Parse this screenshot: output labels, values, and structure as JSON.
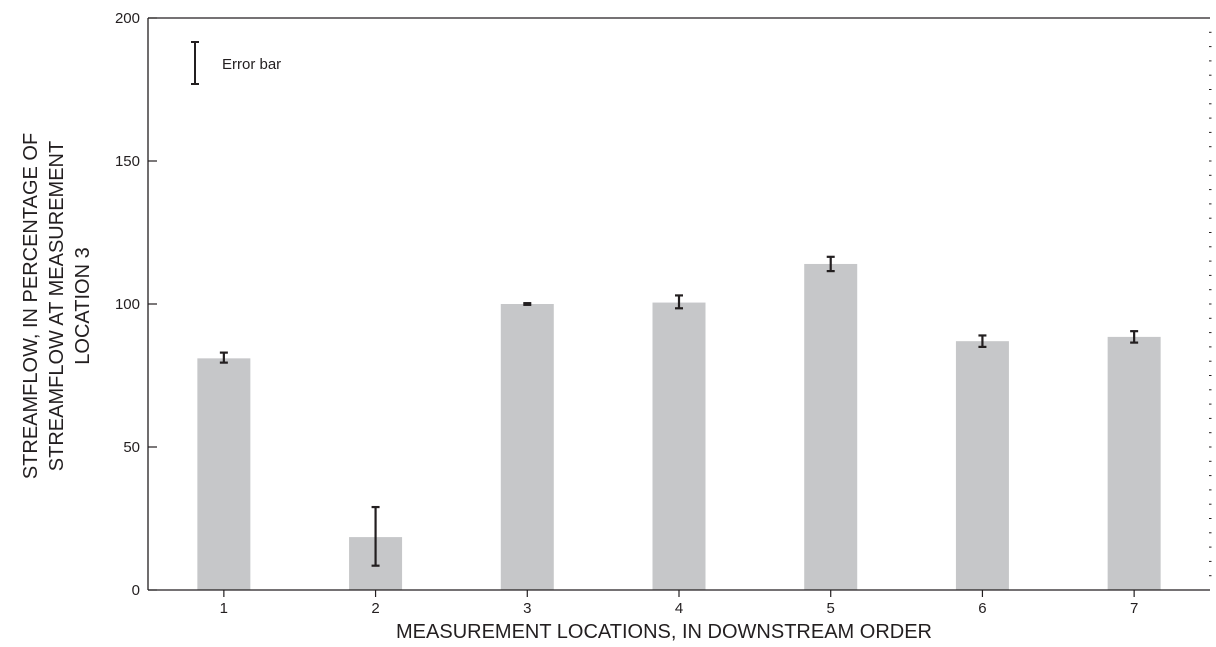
{
  "chart_data": {
    "type": "bar",
    "categories": [
      "1",
      "2",
      "3",
      "4",
      "5",
      "6",
      "7"
    ],
    "values": [
      81,
      18.5,
      100,
      100.5,
      114,
      87,
      88.5
    ],
    "error_low": [
      79.5,
      8.5,
      99.7,
      98.5,
      111.5,
      85,
      86.5
    ],
    "error_high": [
      83,
      29,
      100.3,
      103,
      116.5,
      89,
      90.5
    ],
    "xlabel": "MEASUREMENT LOCATIONS, IN DOWNSTREAM ORDER",
    "ylabel_lines": [
      "STREAMFLOW, IN PERCENTAGE OF",
      "STREAMFLOW AT MEASUREMENT",
      "LOCATION 3"
    ],
    "yticks": [
      0,
      50,
      100,
      150,
      200
    ],
    "ylim": [
      0,
      200
    ],
    "legend": {
      "label": "Error bar",
      "placement": "top-left"
    },
    "grid": false,
    "colors": {
      "bar": "#c6c7c9",
      "ink": "#231f20"
    }
  }
}
